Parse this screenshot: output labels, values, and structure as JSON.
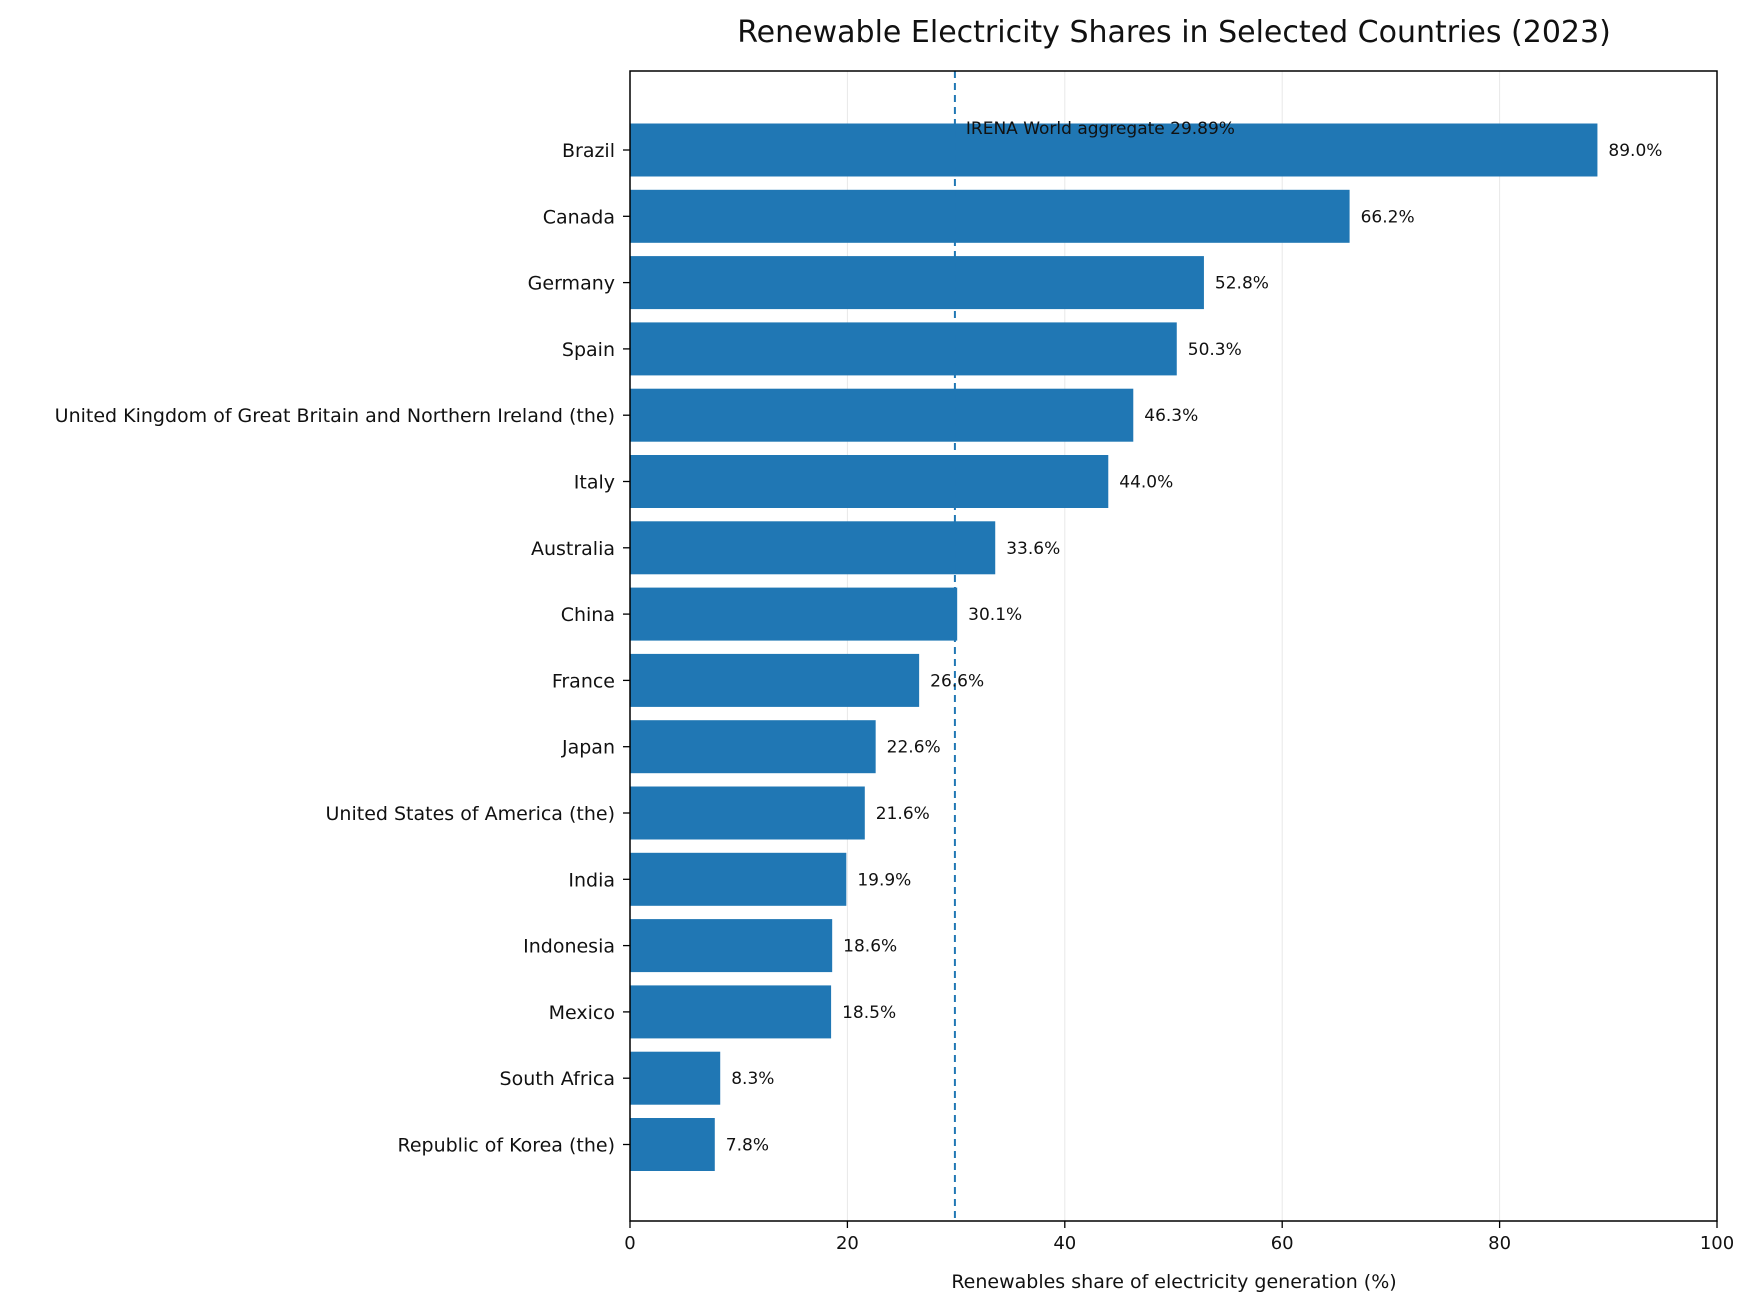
{
  "chart_data": {
    "type": "bar",
    "orientation": "horizontal",
    "title": "Renewable Electricity Shares in Selected Countries (2023)",
    "xlabel": "Renewables share of electricity generation (%)",
    "ylabel": "",
    "xlim": [
      0,
      100
    ],
    "xticks": [
      0,
      20,
      40,
      60,
      80,
      100
    ],
    "grid": "vertical",
    "bar_color": "#2077b4",
    "categories": [
      "Brazil",
      "Canada",
      "Germany",
      "Spain",
      "United Kingdom of Great Britain and Northern Ireland (the)",
      "Italy",
      "Australia",
      "China",
      "France",
      "Japan",
      "United States of America (the)",
      "India",
      "Indonesia",
      "Mexico",
      "South Africa",
      "Republic of Korea (the)"
    ],
    "values": [
      89.0,
      66.2,
      52.8,
      50.3,
      46.3,
      44.0,
      33.6,
      30.1,
      26.6,
      22.6,
      21.6,
      19.9,
      18.6,
      18.5,
      8.3,
      7.8
    ],
    "data_labels": [
      "89.0%",
      "66.2%",
      "52.8%",
      "50.3%",
      "46.3%",
      "44.0%",
      "33.6%",
      "30.1%",
      "26.6%",
      "22.6%",
      "21.6%",
      "19.9%",
      "18.6%",
      "18.5%",
      "8.3%",
      "7.8%"
    ],
    "reference_line": {
      "value": 29.89,
      "label": "IRENA World aggregate 29.89%",
      "style": "dashed",
      "color": "#2077b4"
    }
  }
}
